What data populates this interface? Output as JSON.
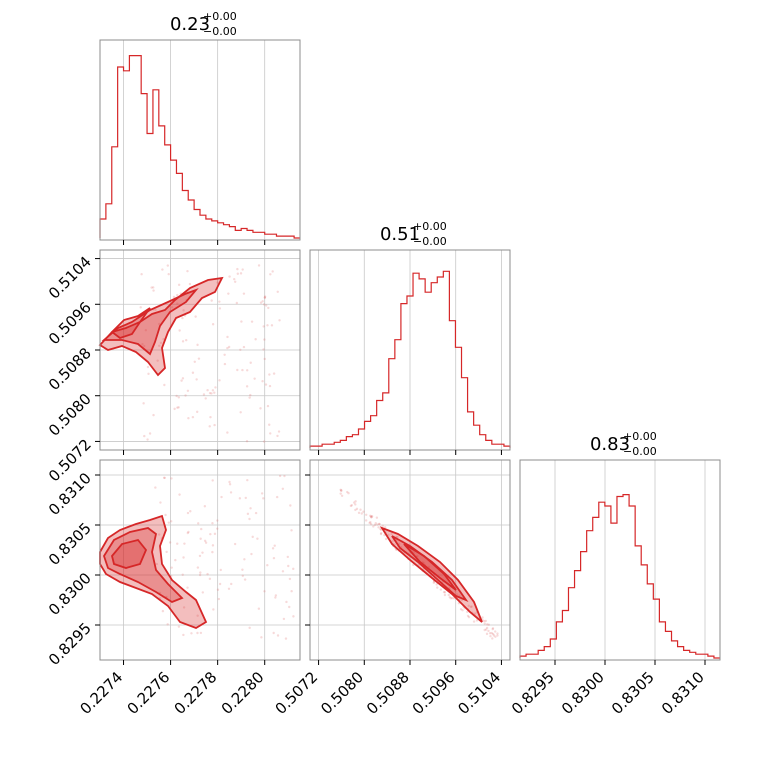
{
  "chart_data": {
    "type": "corner",
    "parameters": [
      {
        "title_value": "0.23",
        "title_plus": "+0.00",
        "title_minus": "−0.00",
        "range": [
          0.2273,
          0.22815
        ],
        "ticks": [
          0.2274,
          0.2276,
          0.2278,
          0.228
        ],
        "tick_labels": [
          "0.2274",
          "0.2276",
          "0.2278",
          "0.2280"
        ],
        "histogram": [
          0.1,
          0.18,
          0.48,
          0.9,
          0.88,
          0.96,
          0.96,
          0.76,
          0.55,
          0.78,
          0.59,
          0.49,
          0.41,
          0.34,
          0.25,
          0.2,
          0.15,
          0.12,
          0.1,
          0.09,
          0.08,
          0.07,
          0.06,
          0.04,
          0.05,
          0.04,
          0.03,
          0.03,
          0.02,
          0.02,
          0.01,
          0.01,
          0.01,
          0.0
        ]
      },
      {
        "title_value": "0.51",
        "title_plus": "+0.00",
        "title_minus": "−0.00",
        "range": [
          0.50705,
          0.51055
        ],
        "ticks": [
          0.5072,
          0.508,
          0.5088,
          0.5096,
          0.5104
        ],
        "tick_labels": [
          "0.5072",
          "0.5080",
          "0.5088",
          "0.5096",
          "0.5104"
        ],
        "histogram": [
          0.01,
          0.01,
          0.02,
          0.02,
          0.03,
          0.04,
          0.06,
          0.07,
          0.1,
          0.14,
          0.17,
          0.25,
          0.29,
          0.47,
          0.57,
          0.76,
          0.8,
          0.92,
          0.89,
          0.82,
          0.87,
          0.9,
          0.93,
          0.67,
          0.53,
          0.37,
          0.19,
          0.12,
          0.07,
          0.04,
          0.02,
          0.02,
          0.01
        ]
      },
      {
        "title_value": "0.83",
        "title_plus": "+0.00",
        "title_minus": "−0.00",
        "range": [
          0.82915,
          0.83115
        ],
        "ticks": [
          0.8295,
          0.83,
          0.8305,
          0.831
        ],
        "tick_labels": [
          "0.8295",
          "0.8300",
          "0.8305",
          "0.8310"
        ],
        "histogram": [
          0.01,
          0.02,
          0.02,
          0.04,
          0.06,
          0.1,
          0.19,
          0.25,
          0.37,
          0.46,
          0.56,
          0.67,
          0.74,
          0.82,
          0.8,
          0.71,
          0.85,
          0.86,
          0.8,
          0.59,
          0.49,
          0.39,
          0.31,
          0.19,
          0.14,
          0.09,
          0.06,
          0.04,
          0.03,
          0.02,
          0.02,
          0.01,
          0.0
        ]
      }
    ],
    "color": "#d62728",
    "grid": true
  }
}
